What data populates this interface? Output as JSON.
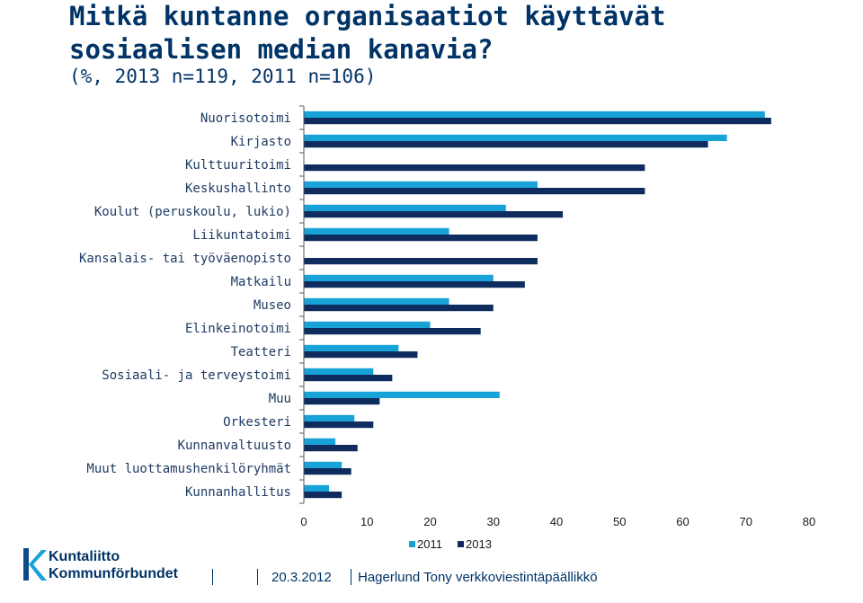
{
  "title": "Mitkä kuntanne organisaatiot käyttävät sosiaalisen median kanavia?",
  "subtitle": "(%, 2013 n=119, 2011 n=106)",
  "colors": {
    "series_2011": "#17a2d8",
    "series_2013": "#0e2c5e",
    "gridline": "#595959"
  },
  "chart_data": {
    "type": "bar",
    "orientation": "horizontal",
    "categories": [
      "Nuorisotoimi",
      "Kirjasto",
      "Kulttuuritoimi",
      "Keskushallinto",
      "Koulut (peruskoulu, lukio)",
      "Liikuntatoimi",
      "Kansalais- tai työväenopisto",
      "Matkailu",
      "Museo",
      "Elinkeinotoimi",
      "Teatteri",
      "Sosiaali- ja terveystoimi",
      "Muu",
      "Orkesteri",
      "Kunnanvaltuusto",
      "Muut luottamushenkilöryhmät",
      "Kunnanhallitus"
    ],
    "series": [
      {
        "name": "2011",
        "values": [
          73,
          67,
          0,
          37,
          32,
          23,
          0,
          30,
          23,
          20,
          15,
          11,
          31,
          8,
          5,
          6,
          4
        ]
      },
      {
        "name": "2013",
        "values": [
          74,
          64,
          54,
          54,
          41,
          37,
          37,
          35,
          30,
          28,
          18,
          14,
          12,
          11,
          8.5,
          7.5,
          6
        ]
      }
    ],
    "xlim": [
      0,
      80
    ],
    "xticks": [
      "0",
      "10",
      "20",
      "30",
      "40",
      "50",
      "60",
      "70",
      "80"
    ],
    "legend_position": "bottom",
    "grid": "none"
  },
  "logo": {
    "line1": "Kuntaliitto",
    "line2": "Kommunförbundet"
  },
  "footer": {
    "date": "20.3.2012",
    "author": "Hagerlund Tony verkkoviestintäpäällikkö"
  }
}
